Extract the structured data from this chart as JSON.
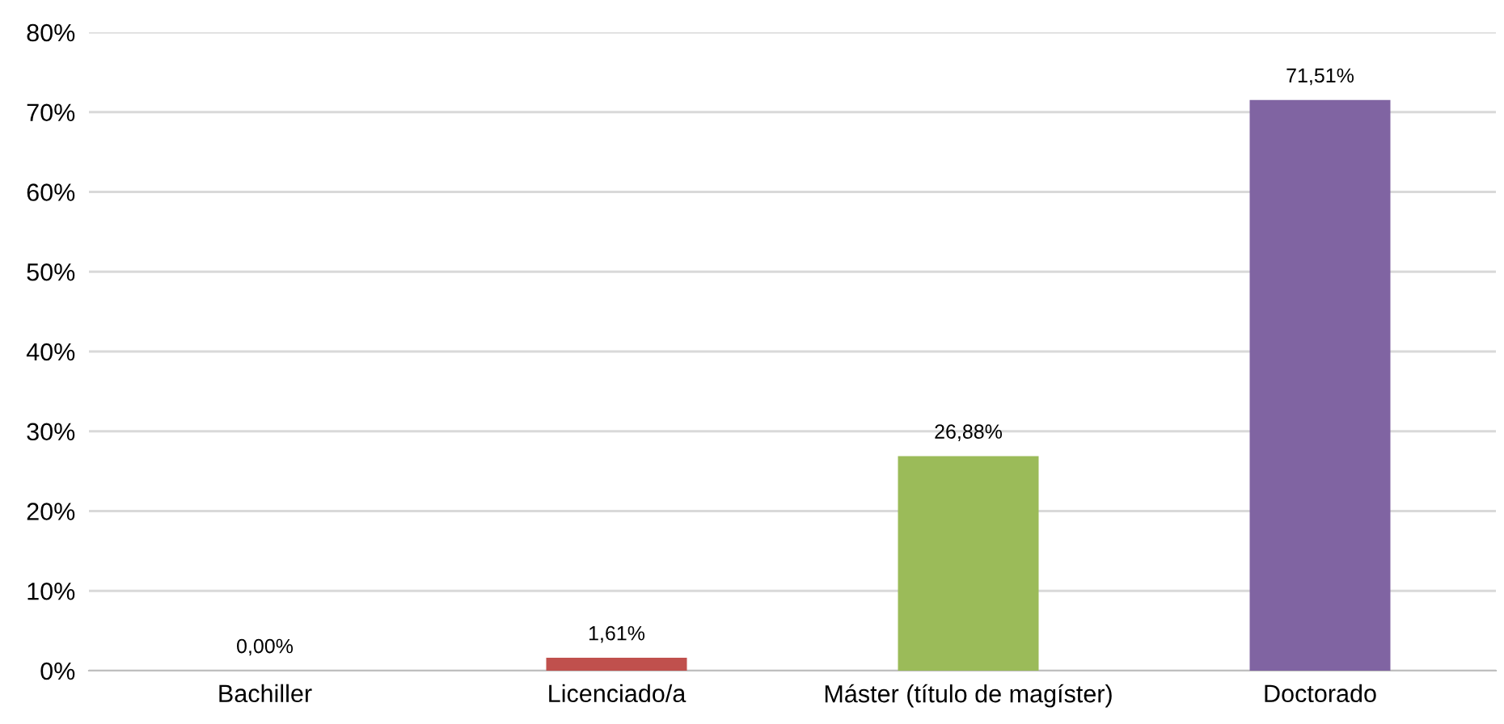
{
  "chart_data": {
    "type": "bar",
    "categories": [
      "Bachiller",
      "Licenciado/a",
      "Máster (título de magíster)",
      "Doctorado"
    ],
    "values": [
      0,
      1.61,
      26.88,
      71.51
    ],
    "colors": [
      "#4f81bd",
      "#c0504d",
      "#9bbb59",
      "#8064a2"
    ],
    "value_labels": [
      "0,00%",
      "1,61%",
      "26,88%",
      "71,51%"
    ],
    "ylim": [
      0,
      80
    ],
    "yticks": [
      {
        "value": 0,
        "label": "0%"
      },
      {
        "value": 10,
        "label": "10%"
      },
      {
        "value": 20,
        "label": "20%"
      },
      {
        "value": 30,
        "label": "30%"
      },
      {
        "value": 40,
        "label": "40%"
      },
      {
        "value": 50,
        "label": "50%"
      },
      {
        "value": 60,
        "label": "60%"
      },
      {
        "value": 70,
        "label": "70%"
      },
      {
        "value": 80,
        "label": "80%"
      }
    ],
    "grid": "y",
    "legend": false
  }
}
